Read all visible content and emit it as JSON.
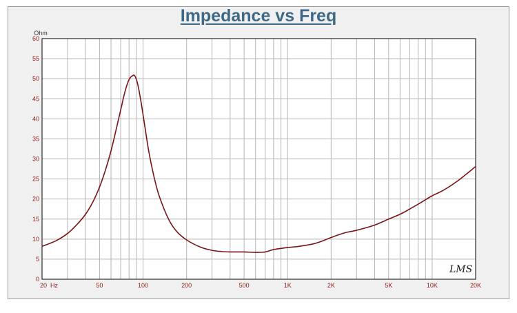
{
  "chart_data": {
    "type": "line",
    "title": "Impedance vs Freq",
    "ylabel": "Ohm",
    "xscale": "log",
    "xlim": [
      20,
      20000
    ],
    "ylim": [
      0,
      60
    ],
    "grid": true,
    "y_ticks": [
      0,
      5,
      10,
      15,
      20,
      25,
      30,
      35,
      40,
      45,
      50,
      55,
      60
    ],
    "x_ticks": [
      {
        "value": 20,
        "label": "20  Hz"
      },
      {
        "value": 50,
        "label": "50"
      },
      {
        "value": 100,
        "label": "100"
      },
      {
        "value": 200,
        "label": "200"
      },
      {
        "value": 500,
        "label": "500"
      },
      {
        "value": 1000,
        "label": "1K"
      },
      {
        "value": 2000,
        "label": "2K"
      },
      {
        "value": 5000,
        "label": "5K"
      },
      {
        "value": 10000,
        "label": "10K"
      },
      {
        "value": 20000,
        "label": "20K"
      }
    ],
    "series": [
      {
        "color": "#7a1414",
        "x": [
          20,
          25,
          30,
          35,
          40,
          45,
          50,
          55,
          60,
          65,
          70,
          75,
          80,
          85,
          88,
          92,
          97,
          103,
          110,
          120,
          130,
          150,
          170,
          200,
          250,
          300,
          350,
          400,
          500,
          600,
          700,
          800,
          1000,
          1200,
          1500,
          1700,
          2000,
          2500,
          3000,
          4000,
          5000,
          6000,
          7000,
          8000,
          10000,
          12000,
          15000,
          20000
        ],
        "y": [
          8.2,
          9.6,
          11.4,
          13.7,
          16.2,
          19.3,
          23.0,
          27.3,
          32.0,
          37.2,
          42.2,
          46.8,
          49.8,
          50.8,
          50.6,
          48.5,
          44.0,
          38.0,
          31.5,
          25.0,
          20.5,
          15.0,
          12.0,
          9.8,
          8.0,
          7.2,
          6.9,
          6.8,
          6.8,
          6.7,
          6.8,
          7.4,
          7.9,
          8.2,
          8.8,
          9.4,
          10.4,
          11.6,
          12.2,
          13.5,
          15.0,
          16.2,
          17.5,
          18.7,
          20.8,
          22.2,
          24.5,
          28.1
        ]
      }
    ],
    "colors": {
      "curve": "#7a1414",
      "tick_labels": "#8b1a1a",
      "title": "#3f6a87",
      "grid": "#b4b4b4",
      "plot_background": "#ffffff"
    }
  },
  "watermark": "LMS"
}
